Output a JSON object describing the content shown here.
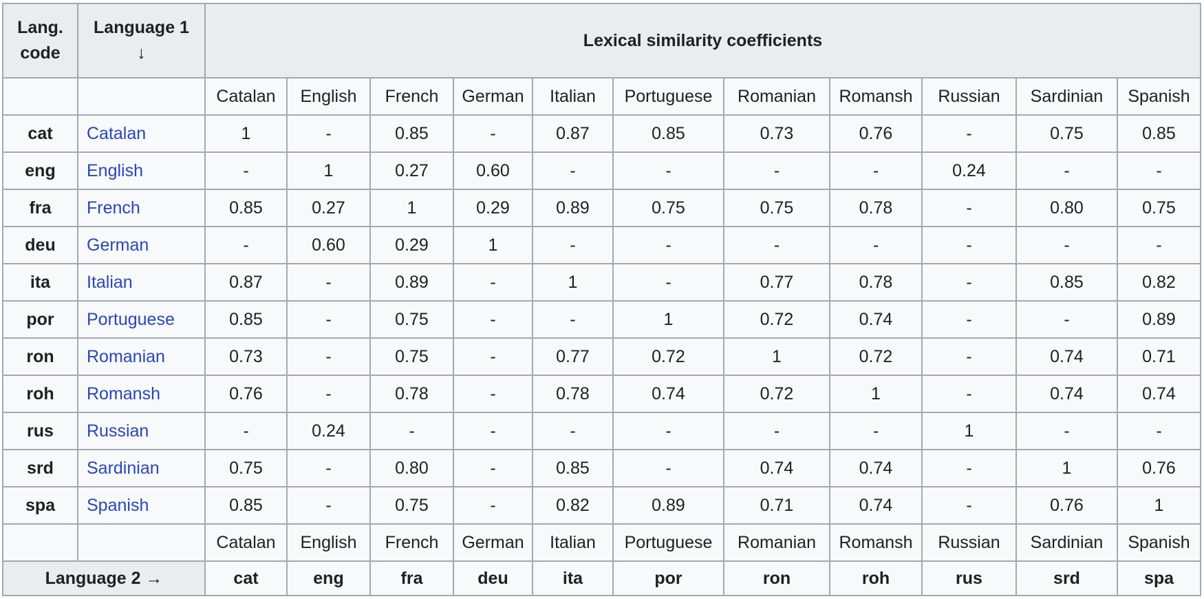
{
  "table": {
    "corner_header": [
      "Lang.",
      "code"
    ],
    "language1_header": [
      "Language 1",
      "↓"
    ],
    "matrix_header": "Lexical similarity coefficients",
    "language2_label": "Language 2 →",
    "columns": [
      "Catalan",
      "English",
      "French",
      "German",
      "Italian",
      "Portuguese",
      "Romanian",
      "Romansh",
      "Russian",
      "Sardinian",
      "Spanish"
    ],
    "rows": [
      {
        "code": "cat",
        "language": "Catalan",
        "values": [
          "1",
          "-",
          "0.85",
          "-",
          "0.87",
          "0.85",
          "0.73",
          "0.76",
          "-",
          "0.75",
          "0.85"
        ]
      },
      {
        "code": "eng",
        "language": "English",
        "values": [
          "-",
          "1",
          "0.27",
          "0.60",
          "-",
          "-",
          "-",
          "-",
          "0.24",
          "-",
          "-"
        ]
      },
      {
        "code": "fra",
        "language": "French",
        "values": [
          "0.85",
          "0.27",
          "1",
          "0.29",
          "0.89",
          "0.75",
          "0.75",
          "0.78",
          "-",
          "0.80",
          "0.75"
        ]
      },
      {
        "code": "deu",
        "language": "German",
        "values": [
          "-",
          "0.60",
          "0.29",
          "1",
          "-",
          "-",
          "-",
          "-",
          "-",
          "-",
          "-"
        ]
      },
      {
        "code": "ita",
        "language": "Italian",
        "values": [
          "0.87",
          "-",
          "0.89",
          "-",
          "1",
          "-",
          "0.77",
          "0.78",
          "-",
          "0.85",
          "0.82"
        ]
      },
      {
        "code": "por",
        "language": "Portuguese",
        "values": [
          "0.85",
          "-",
          "0.75",
          "-",
          "-",
          "1",
          "0.72",
          "0.74",
          "-",
          "-",
          "0.89"
        ]
      },
      {
        "code": "ron",
        "language": "Romanian",
        "values": [
          "0.73",
          "-",
          "0.75",
          "-",
          "0.77",
          "0.72",
          "1",
          "0.72",
          "-",
          "0.74",
          "0.71"
        ]
      },
      {
        "code": "roh",
        "language": "Romansh",
        "values": [
          "0.76",
          "-",
          "0.78",
          "-",
          "0.78",
          "0.74",
          "0.72",
          "1",
          "-",
          "0.74",
          "0.74"
        ]
      },
      {
        "code": "rus",
        "language": "Russian",
        "values": [
          "-",
          "0.24",
          "-",
          "-",
          "-",
          "-",
          "-",
          "-",
          "1",
          "-",
          "-"
        ]
      },
      {
        "code": "srd",
        "language": "Sardinian",
        "values": [
          "0.75",
          "-",
          "0.80",
          "-",
          "0.85",
          "-",
          "0.74",
          "0.74",
          "-",
          "1",
          "0.76"
        ]
      },
      {
        "code": "spa",
        "language": "Spanish",
        "values": [
          "0.85",
          "-",
          "0.75",
          "-",
          "0.82",
          "0.89",
          "0.71",
          "0.74",
          "-",
          "0.76",
          "1"
        ]
      }
    ],
    "footer_codes": [
      "cat",
      "eng",
      "fra",
      "deu",
      "ita",
      "por",
      "ron",
      "roh",
      "rus",
      "srd",
      "spa"
    ]
  },
  "colors": {
    "header_background": "#eaecf0",
    "cell_background": "#f8f9fa",
    "border": "#a2a9b1",
    "link": "#2846be",
    "text": "#202122"
  }
}
